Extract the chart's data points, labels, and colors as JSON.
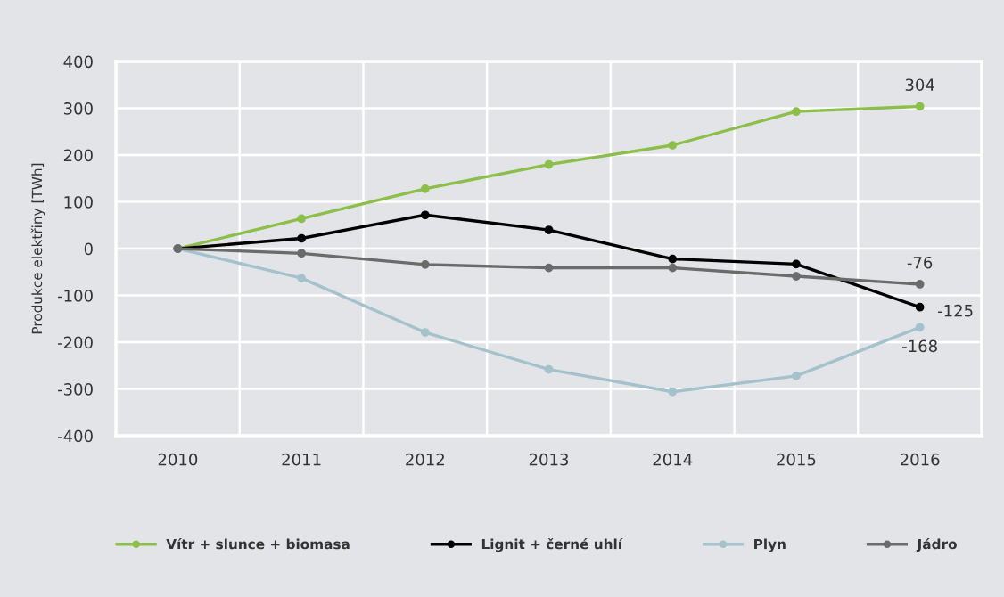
{
  "chart_data": {
    "type": "line",
    "ylabel": "Produkce elektřiny [TWh]",
    "categories": [
      "2010",
      "2011",
      "2012",
      "2013",
      "2014",
      "2015",
      "2016"
    ],
    "series": [
      {
        "name": "Vítr + slunce + biomasa",
        "color": "#8cbf4a",
        "values": [
          0,
          64,
          128,
          180,
          221,
          293,
          304
        ],
        "value_labels": [
          null,
          null,
          null,
          null,
          null,
          null,
          "304"
        ]
      },
      {
        "name": "Lignit + černé uhlí",
        "color": "#000000",
        "values": [
          0,
          22,
          72,
          40,
          -22,
          -33,
          -125
        ],
        "value_labels": [
          null,
          null,
          null,
          null,
          null,
          null,
          "-125"
        ]
      },
      {
        "name": "Plyn",
        "color": "#a3c2cc",
        "values": [
          0,
          -63,
          -179,
          -258,
          -306,
          -272,
          -168
        ],
        "value_labels": [
          null,
          null,
          null,
          null,
          null,
          null,
          "-168"
        ]
      },
      {
        "name": "Jádro",
        "color": "#6b6b6b",
        "values": [
          0,
          -10,
          -34,
          -41,
          -41,
          -59,
          -76
        ],
        "value_labels": [
          null,
          null,
          null,
          null,
          null,
          null,
          "-76"
        ]
      }
    ],
    "ylim": [
      -400,
      400
    ],
    "yticks": [
      -400,
      -300,
      -200,
      -100,
      0,
      100,
      200,
      300,
      400
    ],
    "grid": true,
    "legend": "bottom",
    "marker": "circle",
    "line_style": "solid"
  }
}
